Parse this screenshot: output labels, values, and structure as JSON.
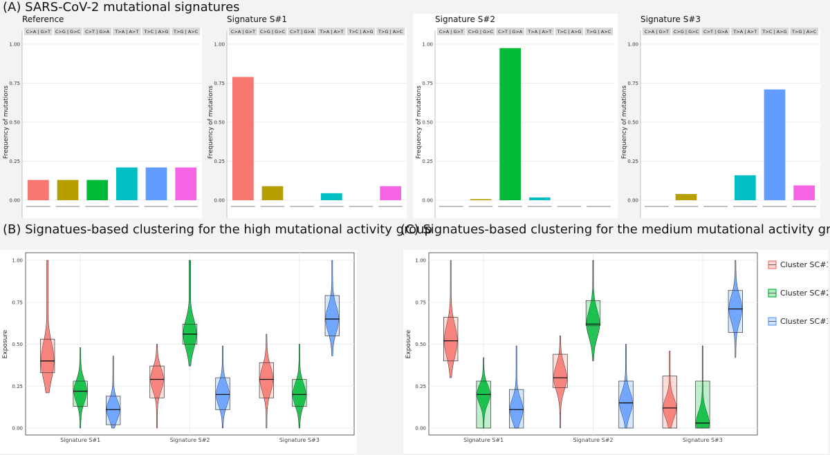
{
  "sections": {
    "a": "(A) SARS-CoV-2 mutational signatures",
    "b": "(B) Signatues-based clustering for the high mutational activity group",
    "c": "(C) Signatues-based clustering for the medium mutational activity group"
  },
  "chart_data": [
    {
      "type": "bar",
      "title": "Reference",
      "ylabel": "Frequency of mutations",
      "ylim": [
        0,
        1
      ],
      "yticks": [
        "0.00",
        "0.25",
        "0.50",
        "0.75",
        "1.00"
      ],
      "categories": [
        "C>A | G>T",
        "C>G | G>C",
        "C>T | G>A",
        "T>A | A>T",
        "T>C | A>G",
        "T>G | A>C"
      ],
      "values": [
        0.13,
        0.13,
        0.13,
        0.21,
        0.21,
        0.21
      ],
      "colors": [
        "#F8766D",
        "#B79F00",
        "#00BA38",
        "#00BFC4",
        "#619CFF",
        "#F564E3"
      ]
    },
    {
      "type": "bar",
      "title": "Signature S#1",
      "ylabel": "Frequency of mutations",
      "ylim": [
        0,
        1
      ],
      "yticks": [
        "0.00",
        "0.25",
        "0.50",
        "0.75",
        "1.00"
      ],
      "categories": [
        "C>A | G>T",
        "C>G | G>C",
        "C>T | G>A",
        "T>A | A>T",
        "T>C | A>G",
        "T>G | A>C"
      ],
      "values": [
        0.79,
        0.09,
        0.0,
        0.045,
        0.0,
        0.09
      ],
      "colors": [
        "#F8766D",
        "#B79F00",
        "#00BA38",
        "#00BFC4",
        "#619CFF",
        "#F564E3"
      ]
    },
    {
      "type": "bar",
      "title": "Signature S#2",
      "ylabel": "Frequency of mutations",
      "ylim": [
        0,
        1
      ],
      "yticks": [
        "0.00",
        "0.25",
        "0.50",
        "0.75",
        "1.00"
      ],
      "categories": [
        "C>A | G>T",
        "C>G | G>C",
        "C>T | G>A",
        "T>A | A>T",
        "T>C | A>G",
        "T>G | A>C"
      ],
      "values": [
        0.0,
        0.007,
        0.975,
        0.018,
        0.0,
        0.0
      ],
      "colors": [
        "#F8766D",
        "#B79F00",
        "#00BA38",
        "#00BFC4",
        "#619CFF",
        "#F564E3"
      ]
    },
    {
      "type": "bar",
      "title": "Signature S#3",
      "ylabel": "Frequency of mutations",
      "ylim": [
        0,
        1
      ],
      "yticks": [
        "0.00",
        "0.25",
        "0.50",
        "0.75",
        "1.00"
      ],
      "categories": [
        "C>A | G>T",
        "C>G | G>C",
        "C>T | G>A",
        "T>A | A>T",
        "T>C | A>G",
        "T>G | A>C"
      ],
      "values": [
        0.0,
        0.04,
        0.0,
        0.16,
        0.71,
        0.095
      ],
      "colors": [
        "#F8766D",
        "#B79F00",
        "#00BA38",
        "#00BFC4",
        "#619CFF",
        "#F564E3"
      ]
    },
    {
      "type": "boxplot",
      "ylabel": "Exposure",
      "ylim": [
        0,
        1
      ],
      "yticks": [
        "0.00",
        "0.25",
        "0.50",
        "0.75",
        "1.00"
      ],
      "categories": [
        "Signature S#1",
        "Signature S#2",
        "Signature S#3"
      ],
      "series": [
        {
          "name": "Cluster SC#1",
          "color": "#F8766D",
          "boxes": [
            {
              "min": 0.21,
              "q1": 0.33,
              "median": 0.4,
              "q3": 0.53,
              "max": 1.0,
              "outliers_from": 0.65
            },
            {
              "min": 0.0,
              "q1": 0.18,
              "median": 0.29,
              "q3": 0.37,
              "max": 0.5
            },
            {
              "min": 0.0,
              "q1": 0.18,
              "median": 0.29,
              "q3": 0.39,
              "max": 0.56
            }
          ]
        },
        {
          "name": "Cluster SC#2",
          "color": "#00BA38",
          "boxes": [
            {
              "min": 0.0,
              "q1": 0.13,
              "median": 0.22,
              "q3": 0.28,
              "max": 0.48
            },
            {
              "min": 0.37,
              "q1": 0.5,
              "median": 0.56,
              "q3": 0.62,
              "max": 1.0,
              "outliers_from": 0.76
            },
            {
              "min": 0.0,
              "q1": 0.13,
              "median": 0.2,
              "q3": 0.29,
              "max": 0.5
            }
          ]
        },
        {
          "name": "Cluster SC#3",
          "color": "#619CFF",
          "boxes": [
            {
              "min": 0.0,
              "q1": 0.02,
              "median": 0.11,
              "q3": 0.19,
              "max": 0.43
            },
            {
              "min": 0.0,
              "q1": 0.11,
              "median": 0.2,
              "q3": 0.3,
              "max": 0.49
            },
            {
              "min": 0.43,
              "q1": 0.55,
              "median": 0.65,
              "q3": 0.79,
              "max": 1.0
            }
          ]
        }
      ]
    },
    {
      "type": "boxplot",
      "ylabel": "Exposure",
      "ylim": [
        0,
        1
      ],
      "yticks": [
        "0.00",
        "0.25",
        "0.50",
        "0.75",
        "1.00"
      ],
      "categories": [
        "Signature S#1",
        "Signature S#2",
        "Signature S#3"
      ],
      "legend": [
        "Cluster SC#1",
        "Cluster SC#2",
        "Cluster SC#3"
      ],
      "series": [
        {
          "name": "Cluster SC#1",
          "color": "#F8766D",
          "boxes": [
            {
              "min": 0.3,
              "q1": 0.4,
              "median": 0.52,
              "q3": 0.66,
              "max": 1.0
            },
            {
              "min": 0.0,
              "q1": 0.24,
              "median": 0.3,
              "q3": 0.44,
              "max": 0.55
            },
            {
              "min": 0.0,
              "q1": 0.0,
              "median": 0.12,
              "q3": 0.31,
              "max": 0.46
            }
          ]
        },
        {
          "name": "Cluster SC#2",
          "color": "#00BA38",
          "boxes": [
            {
              "min": 0.0,
              "q1": 0.0,
              "median": 0.2,
              "q3": 0.28,
              "max": 0.42
            },
            {
              "min": 0.4,
              "q1": 0.61,
              "median": 0.62,
              "q3": 0.76,
              "max": 1.0
            },
            {
              "min": 0.0,
              "q1": 0.0,
              "median": 0.03,
              "q3": 0.28,
              "max": 0.49
            }
          ]
        },
        {
          "name": "Cluster SC#3",
          "color": "#619CFF",
          "boxes": [
            {
              "min": 0.0,
              "q1": 0.0,
              "median": 0.11,
              "q3": 0.23,
              "max": 0.49
            },
            {
              "min": 0.0,
              "q1": 0.0,
              "median": 0.15,
              "q3": 0.28,
              "max": 0.5
            },
            {
              "min": 0.42,
              "q1": 0.57,
              "median": 0.71,
              "q3": 0.82,
              "max": 1.0
            }
          ]
        }
      ]
    }
  ]
}
